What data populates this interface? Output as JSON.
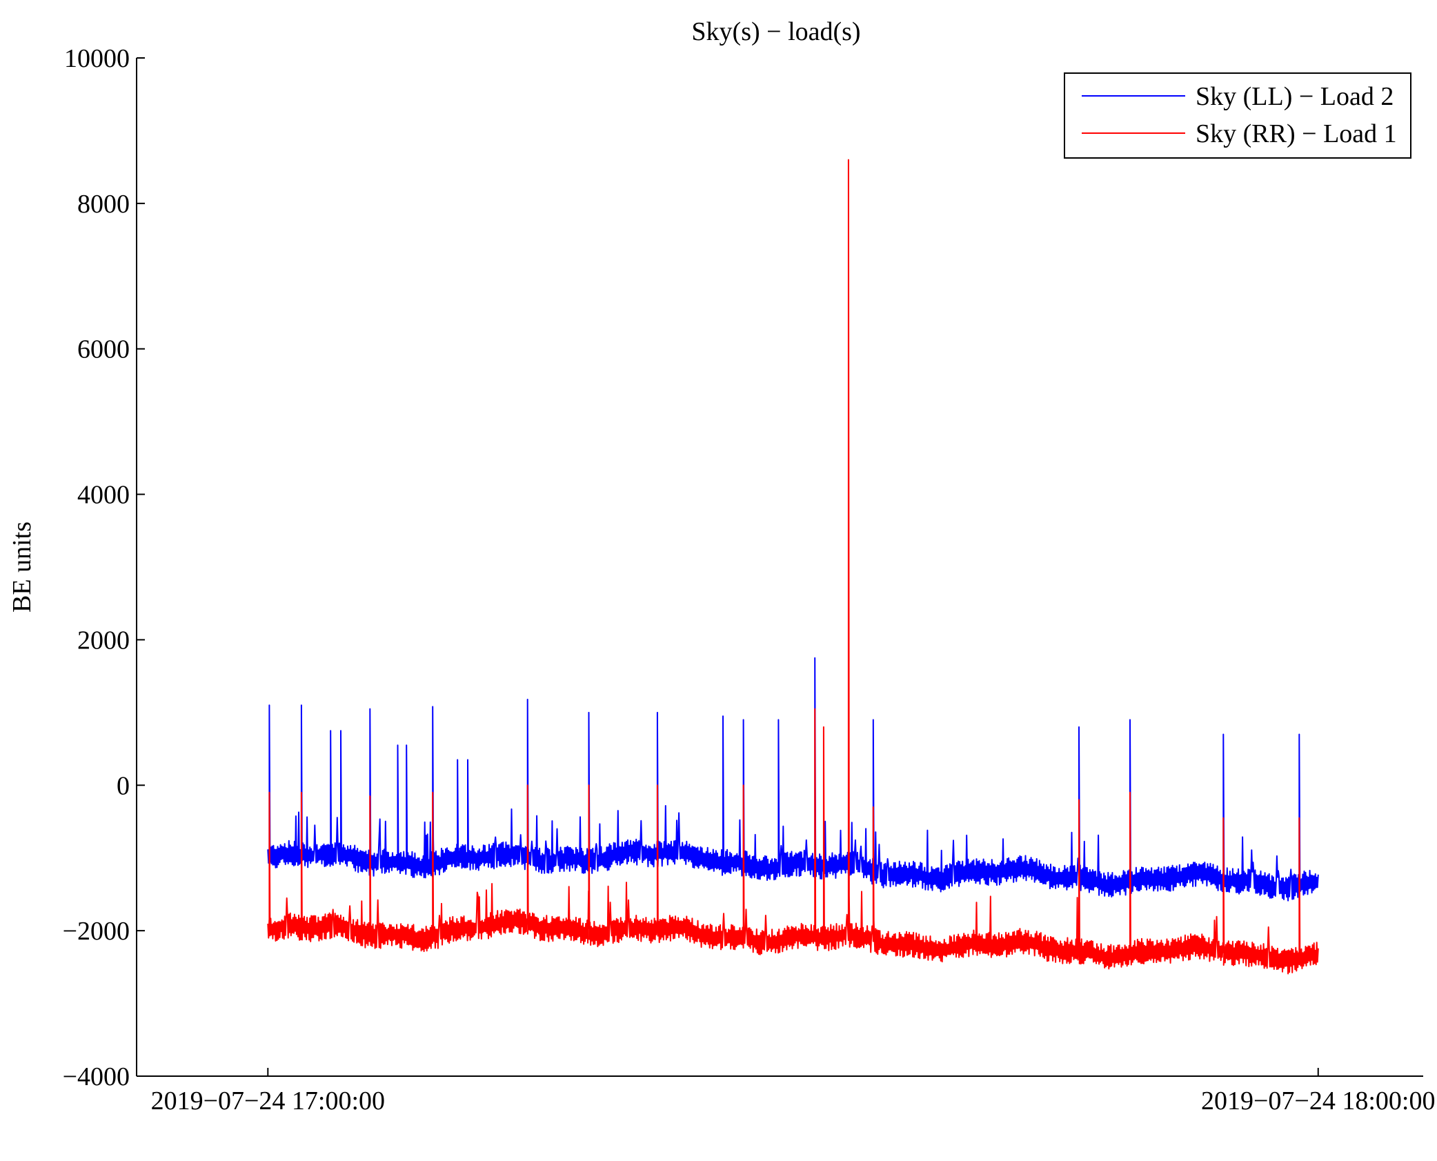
{
  "chart_data": {
    "type": "line",
    "title": "Sky(s) − load(s)",
    "xlabel": "",
    "ylabel": "BE units",
    "ylim": [
      -4000,
      10000
    ],
    "yticks": [
      -4000,
      -2000,
      0,
      2000,
      4000,
      6000,
      8000,
      10000
    ],
    "ytick_labels": [
      "−4000",
      "−2000",
      "0",
      "2000",
      "4000",
      "6000",
      "8000",
      "10000"
    ],
    "xlim": [
      "2019-07-24 16:52:30",
      "2019-07-24 18:06:00"
    ],
    "xticks": [
      "2019-07-24 17:00:00",
      "2019-07-24 18:00:00"
    ],
    "xtick_labels": [
      "2019−07−24 17:00:00",
      "2019−07−24 18:00:00"
    ],
    "grid": false,
    "legend_position": "top-right",
    "series": [
      {
        "name": "Sky (LL) − Load 2",
        "color": "#0000ff",
        "baseline": [
          [
            "2019-07-24 17:00:00",
            -1000
          ],
          [
            "2019-07-24 17:05:00",
            -1000
          ],
          [
            "2019-07-24 17:10:00",
            -1050
          ],
          [
            "2019-07-24 17:15:00",
            -1000
          ],
          [
            "2019-07-24 17:20:00",
            -950
          ],
          [
            "2019-07-24 17:25:00",
            -1000
          ],
          [
            "2019-07-24 17:30:00",
            -1100
          ],
          [
            "2019-07-24 17:35:00",
            -1200
          ],
          [
            "2019-07-24 17:40:00",
            -1200
          ],
          [
            "2019-07-24 17:45:00",
            -1250
          ],
          [
            "2019-07-24 17:50:00",
            -1300
          ],
          [
            "2019-07-24 17:55:00",
            -1300
          ],
          [
            "2019-07-24 18:00:00",
            -1350
          ]
        ],
        "spikes": [
          [
            "2019-07-24 17:00:05",
            1100
          ],
          [
            "2019-07-24 17:01:55",
            1100
          ],
          [
            "2019-07-24 17:03:35",
            750
          ],
          [
            "2019-07-24 17:04:10",
            750
          ],
          [
            "2019-07-24 17:05:50",
            1050
          ],
          [
            "2019-07-24 17:07:25",
            550
          ],
          [
            "2019-07-24 17:07:55",
            550
          ],
          [
            "2019-07-24 17:09:25",
            1080
          ],
          [
            "2019-07-24 17:10:50",
            350
          ],
          [
            "2019-07-24 17:11:25",
            350
          ],
          [
            "2019-07-24 17:14:50",
            1180
          ],
          [
            "2019-07-24 17:18:20",
            1000
          ],
          [
            "2019-07-24 17:22:15",
            1000
          ],
          [
            "2019-07-24 17:26:00",
            950
          ],
          [
            "2019-07-24 17:27:10",
            900
          ],
          [
            "2019-07-24 17:29:10",
            900
          ],
          [
            "2019-07-24 17:31:15",
            1750
          ],
          [
            "2019-07-24 17:34:35",
            900
          ],
          [
            "2019-07-24 17:46:20",
            800
          ],
          [
            "2019-07-24 17:49:15",
            900
          ],
          [
            "2019-07-24 17:54:35",
            700
          ],
          [
            "2019-07-24 17:58:55",
            700
          ]
        ]
      },
      {
        "name": "Sky (RR) − Load 1",
        "color": "#ff0000",
        "baseline": [
          [
            "2019-07-24 17:00:00",
            -2000
          ],
          [
            "2019-07-24 17:05:00",
            -2000
          ],
          [
            "2019-07-24 17:10:00",
            -2050
          ],
          [
            "2019-07-24 17:15:00",
            -1900
          ],
          [
            "2019-07-24 17:20:00",
            -2000
          ],
          [
            "2019-07-24 17:25:00",
            -2050
          ],
          [
            "2019-07-24 17:30:00",
            -2100
          ],
          [
            "2019-07-24 17:35:00",
            -2150
          ],
          [
            "2019-07-24 17:40:00",
            -2200
          ],
          [
            "2019-07-24 17:45:00",
            -2250
          ],
          [
            "2019-07-24 17:50:00",
            -2300
          ],
          [
            "2019-07-24 17:55:00",
            -2300
          ],
          [
            "2019-07-24 18:00:00",
            -2350
          ]
        ],
        "spikes": [
          [
            "2019-07-24 17:00:05",
            -100
          ],
          [
            "2019-07-24 17:01:55",
            -100
          ],
          [
            "2019-07-24 17:05:50",
            -150
          ],
          [
            "2019-07-24 17:09:25",
            -100
          ],
          [
            "2019-07-24 17:14:50",
            0
          ],
          [
            "2019-07-24 17:18:20",
            0
          ],
          [
            "2019-07-24 17:22:15",
            0
          ],
          [
            "2019-07-24 17:27:10",
            0
          ],
          [
            "2019-07-24 17:31:15",
            1050
          ],
          [
            "2019-07-24 17:31:45",
            800
          ],
          [
            "2019-07-24 17:33:10",
            8600
          ],
          [
            "2019-07-24 17:34:35",
            -300
          ],
          [
            "2019-07-24 17:46:20",
            -200
          ],
          [
            "2019-07-24 17:49:15",
            -100
          ],
          [
            "2019-07-24 17:54:35",
            -450
          ],
          [
            "2019-07-24 17:58:55",
            -450
          ]
        ]
      }
    ]
  }
}
